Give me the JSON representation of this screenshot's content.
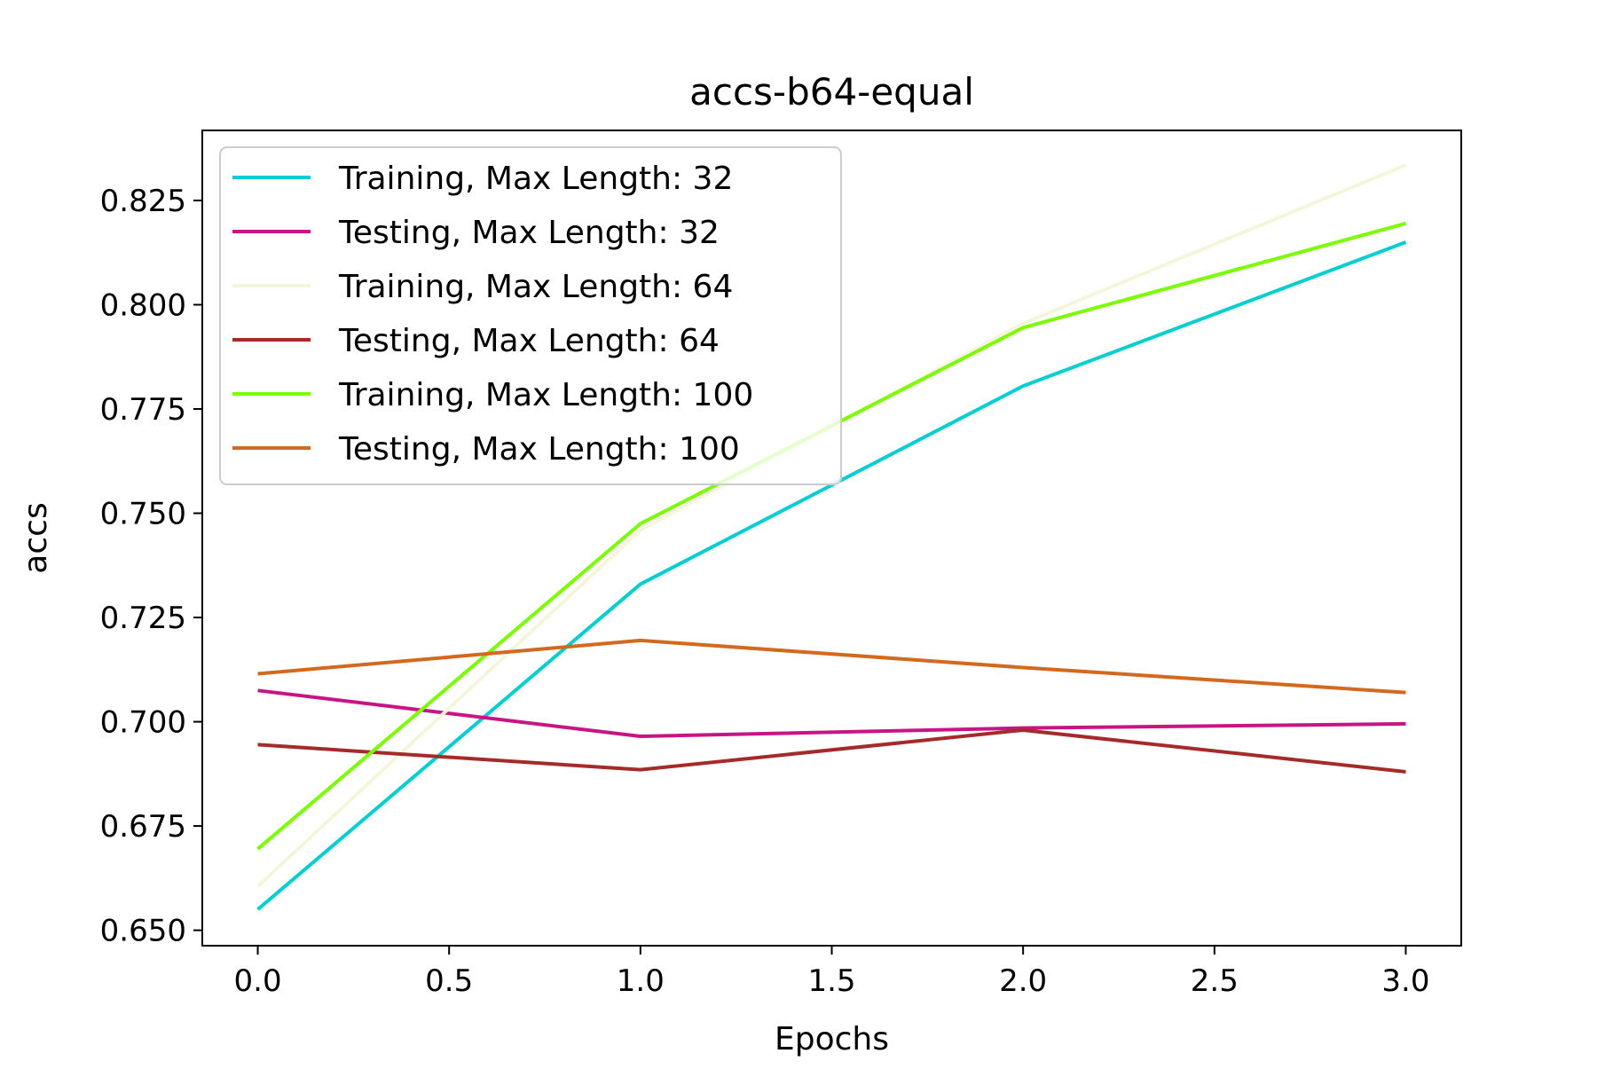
{
  "chart_data": {
    "type": "line",
    "title": "accs-b64-equal",
    "xlabel": "Epochs",
    "ylabel": "accs",
    "x": [
      0,
      1,
      2,
      3
    ],
    "xlim": [
      -0.145,
      3.145
    ],
    "ylim": [
      0.6463,
      0.8418
    ],
    "xticks": [
      0.0,
      0.5,
      1.0,
      1.5,
      2.0,
      2.5,
      3.0
    ],
    "xtick_labels": [
      "0.0",
      "0.5",
      "1.0",
      "1.5",
      "2.0",
      "2.5",
      "3.0"
    ],
    "yticks": [
      0.65,
      0.675,
      0.7,
      0.725,
      0.75,
      0.775,
      0.8,
      0.825
    ],
    "ytick_labels": [
      "0.650",
      "0.675",
      "0.700",
      "0.725",
      "0.750",
      "0.775",
      "0.800",
      "0.825"
    ],
    "grid": false,
    "legend_position": "upper-left",
    "series": [
      {
        "name": "Training, Max Length: 32",
        "color": "#00CED1",
        "values": [
          0.655,
          0.733,
          0.7805,
          0.815
        ]
      },
      {
        "name": "Testing, Max Length: 32",
        "color": "#C71585",
        "values": [
          0.7075,
          0.6965,
          0.6985,
          0.6995
        ]
      },
      {
        "name": "Training, Max Length: 64",
        "color": "#F5F5DC",
        "values": [
          0.6605,
          0.746,
          0.7955,
          0.8335
        ]
      },
      {
        "name": "Testing, Max Length: 64",
        "color": "#A52A2A",
        "values": [
          0.6945,
          0.6885,
          0.698,
          0.688
        ]
      },
      {
        "name": "Training, Max Length: 100",
        "color": "#7CFC00",
        "values": [
          0.6695,
          0.7475,
          0.7945,
          0.8195
        ]
      },
      {
        "name": "Testing, Max Length: 100",
        "color": "#D2691E",
        "values": [
          0.7115,
          0.7195,
          0.713,
          0.707
        ]
      }
    ]
  }
}
